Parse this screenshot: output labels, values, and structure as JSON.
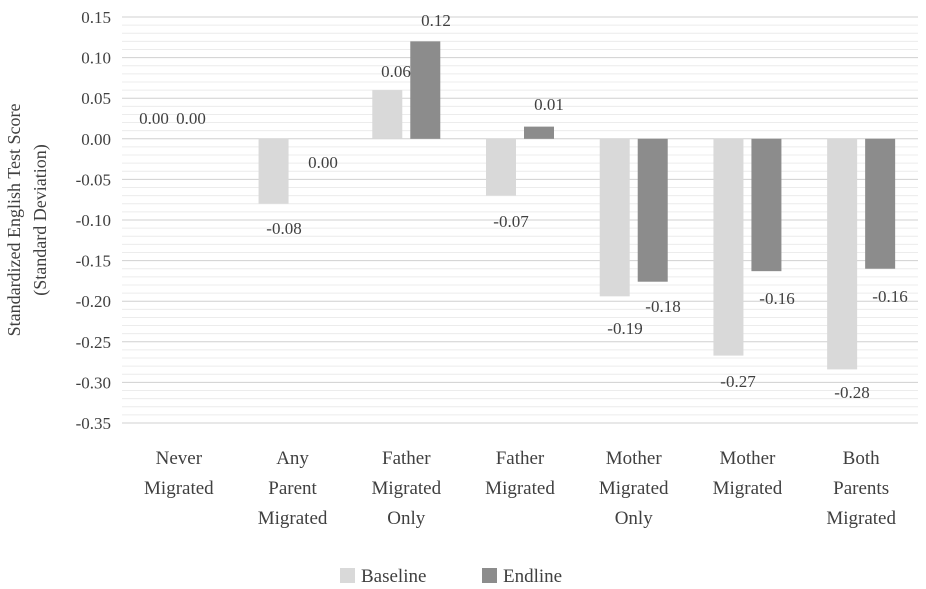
{
  "chart_data": {
    "type": "bar",
    "title": "",
    "ylabel": [
      "Standardized English Test Score",
      "(Standard Deviation)"
    ],
    "xlabel": "",
    "ylim": [
      -0.35,
      0.15
    ],
    "yticks": [
      "0.15",
      "0.10",
      "0.05",
      "0.00",
      "-0.05",
      "-0.10",
      "-0.15",
      "-0.20",
      "-0.25",
      "-0.30",
      "-0.35"
    ],
    "yticks_values": [
      0.15,
      0.1,
      0.05,
      0.0,
      -0.05,
      -0.1,
      -0.15,
      -0.2,
      -0.25,
      -0.3,
      -0.35
    ],
    "grid": true,
    "legend_position": "bottom",
    "categories": [
      [
        "Never",
        "Migrated"
      ],
      [
        "Any",
        "Parent",
        "Migrated"
      ],
      [
        "Father",
        "Migrated",
        "Only"
      ],
      [
        "Father",
        "Migrated"
      ],
      [
        "Mother",
        "Migrated",
        "Only"
      ],
      [
        "Mother",
        "Migrated"
      ],
      [
        "Both",
        "Parents",
        "Migrated"
      ]
    ],
    "series": [
      {
        "name": "Baseline",
        "color": "#d9d9d9",
        "values": [
          0.0,
          -0.08,
          0.06,
          -0.07,
          -0.194,
          -0.267,
          -0.284
        ],
        "labels": [
          "0.00",
          "-0.08",
          "0.06",
          "-0.07",
          "-0.19",
          "-0.27",
          "-0.28"
        ]
      },
      {
        "name": "Endline",
        "color": "#8c8c8c",
        "values": [
          0.0,
          0.0,
          0.12,
          0.015,
          -0.176,
          -0.163,
          -0.16
        ],
        "labels": [
          "0.00",
          "0.00",
          "0.12",
          "0.01",
          "-0.18",
          "-0.16",
          "-0.16"
        ]
      }
    ]
  }
}
